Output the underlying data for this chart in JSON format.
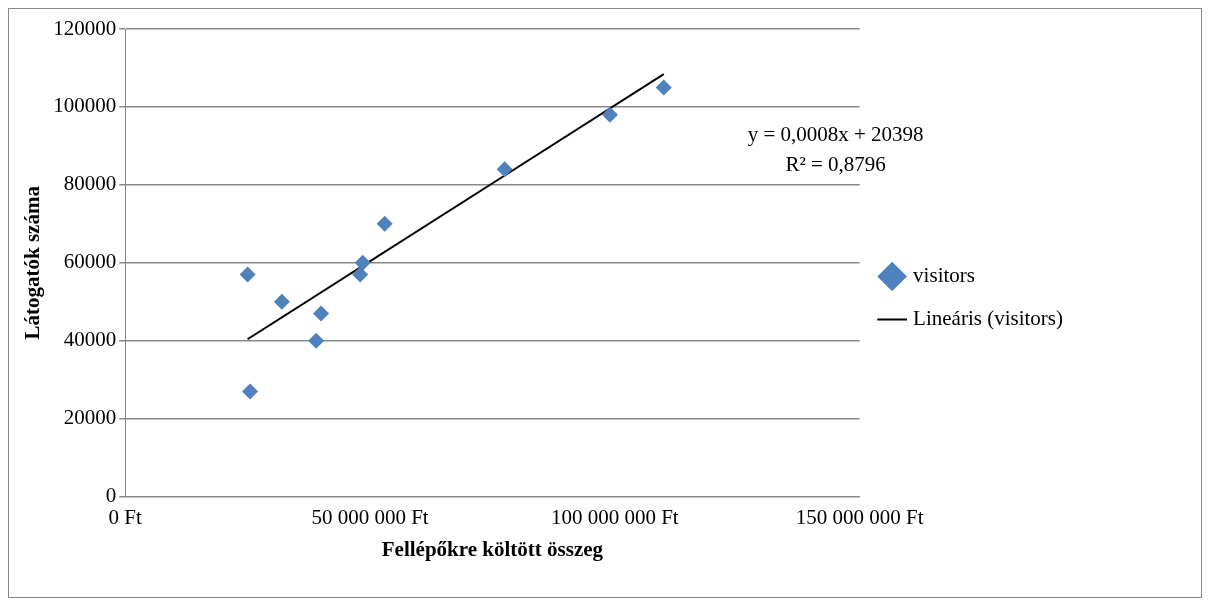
{
  "chart_data": {
    "type": "scatter",
    "xlabel": "Fellépőkre költött összeg",
    "ylabel": "Látogatók száma",
    "series": [
      {
        "name": "visitors",
        "type": "scatter",
        "color": "#4f81bd",
        "marker": "diamond",
        "x": [
          25000000,
          25500000,
          32000000,
          39000000,
          40000000,
          48000000,
          48500000,
          53000000,
          77500000,
          99000000,
          110000000
        ],
        "values": [
          57000,
          27000,
          50000,
          40000,
          47000,
          57000,
          60000,
          70000,
          84000,
          98000,
          105000
        ]
      },
      {
        "name": "Lineáris (visitors)",
        "type": "line",
        "color": "#000000",
        "marker": "none",
        "x": [
          25000000,
          110000000
        ],
        "values": [
          40400,
          108400
        ]
      }
    ],
    "xlim": [
      0,
      150000000
    ],
    "xticks": [
      {
        "value": 0,
        "label": "0 Ft"
      },
      {
        "value": 50000000,
        "label": "50 000 000 Ft"
      },
      {
        "value": 100000000,
        "label": "100 000 000 Ft"
      },
      {
        "value": 150000000,
        "label": "150 000 000 Ft"
      }
    ],
    "ylim": [
      0,
      120000
    ],
    "yticks": [
      0,
      20000,
      40000,
      60000,
      80000,
      100000,
      120000
    ],
    "grid": "y",
    "legend": "right",
    "annotations": [
      "y = 0,0008x + 20398",
      "R² = 0,8796"
    ]
  }
}
